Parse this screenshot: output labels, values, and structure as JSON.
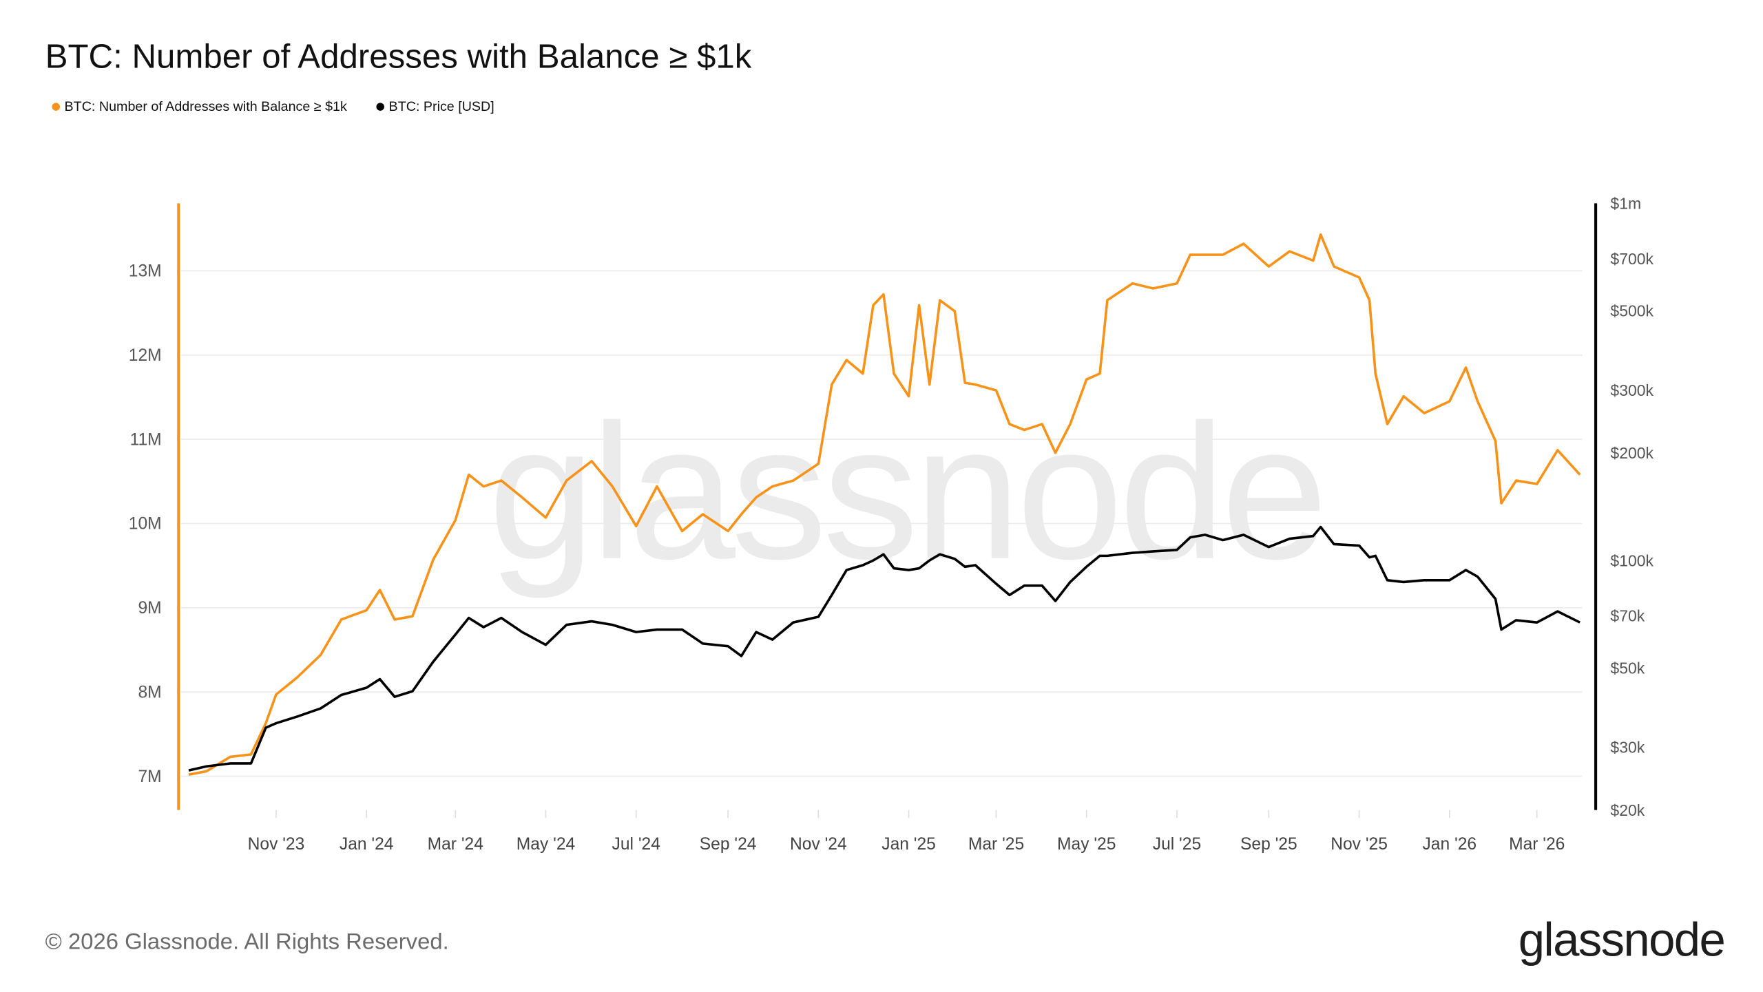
{
  "title": "BTC: Number of Addresses with Balance ≥ $1k",
  "footer": {
    "copyright": "© 2026 Glassnode. All Rights Reserved.",
    "logo": "glassnode",
    "watermark": "glassnode"
  },
  "colors": {
    "addresses": "#f7931a",
    "price": "#000000",
    "grid": "#ebebeb",
    "axis_text": "#555555"
  },
  "chart_data": {
    "type": "line",
    "title": "BTC: Number of Addresses with Balance ≥ $1k",
    "legend_position": "top-left",
    "grid": true,
    "x_ticks": [
      "Nov '23",
      "Jan '24",
      "Mar '24",
      "May '24",
      "Jul '24",
      "Sep '24",
      "Nov '24",
      "Jan '25",
      "Mar '25",
      "May '25",
      "Jul '25",
      "Sep '25",
      "Nov '25",
      "Jan '26",
      "Mar '26"
    ],
    "x_tick_dates": [
      "2023-11-01",
      "2024-01-01",
      "2024-03-01",
      "2024-05-01",
      "2024-07-01",
      "2024-09-01",
      "2024-11-01",
      "2025-01-01",
      "2025-03-01",
      "2025-05-01",
      "2025-07-01",
      "2025-09-01",
      "2025-11-01",
      "2026-01-01",
      "2026-03-01"
    ],
    "xlim": [
      "2023-09-03",
      "2026-03-30"
    ],
    "y_left": {
      "ticks": [
        "7M",
        "8M",
        "9M",
        "10M",
        "11M",
        "12M",
        "13M"
      ],
      "tick_values": [
        7,
        8,
        9,
        10,
        11,
        12,
        13
      ],
      "unit": "M",
      "ylim": [
        6.6,
        13.8
      ]
    },
    "y_right": {
      "scale": "log",
      "ticks": [
        "$20k",
        "$30k",
        "$50k",
        "$70k",
        "$100k",
        "$200k",
        "$300k",
        "$500k",
        "$700k",
        "$1m"
      ],
      "tick_values": [
        20000,
        30000,
        50000,
        70000,
        100000,
        200000,
        300000,
        500000,
        700000,
        1000000
      ],
      "ylim": [
        20000,
        1000000
      ]
    },
    "x": [
      "2023-09-03",
      "2023-09-15",
      "2023-10-01",
      "2023-10-15",
      "2023-10-25",
      "2023-11-01",
      "2023-11-15",
      "2023-12-01",
      "2023-12-15",
      "2024-01-01",
      "2024-01-10",
      "2024-01-20",
      "2024-02-01",
      "2024-02-15",
      "2024-03-01",
      "2024-03-10",
      "2024-03-20",
      "2024-04-01",
      "2024-04-15",
      "2024-05-01",
      "2024-05-15",
      "2024-06-01",
      "2024-06-15",
      "2024-07-01",
      "2024-07-15",
      "2024-08-01",
      "2024-08-15",
      "2024-09-01",
      "2024-09-10",
      "2024-09-20",
      "2024-10-01",
      "2024-10-15",
      "2024-11-01",
      "2024-11-10",
      "2024-11-20",
      "2024-12-01",
      "2024-12-08",
      "2024-12-15",
      "2024-12-22",
      "2025-01-01",
      "2025-01-08",
      "2025-01-15",
      "2025-01-22",
      "2025-02-01",
      "2025-02-08",
      "2025-02-15",
      "2025-03-01",
      "2025-03-10",
      "2025-03-20",
      "2025-04-01",
      "2025-04-10",
      "2025-04-20",
      "2025-05-01",
      "2025-05-10",
      "2025-05-15",
      "2025-06-01",
      "2025-06-15",
      "2025-07-01",
      "2025-07-10",
      "2025-07-20",
      "2025-08-01",
      "2025-08-15",
      "2025-09-01",
      "2025-09-15",
      "2025-10-01",
      "2025-10-06",
      "2025-10-15",
      "2025-11-01",
      "2025-11-08",
      "2025-11-12",
      "2025-11-20",
      "2025-12-01",
      "2025-12-15",
      "2026-01-01",
      "2026-01-12",
      "2026-01-20",
      "2026-02-01",
      "2026-02-05",
      "2026-02-15",
      "2026-03-01",
      "2026-03-15",
      "2026-03-30"
    ],
    "series": [
      {
        "name": "BTC: Number of Addresses with Balance ≥ $1k",
        "axis": "left",
        "unit": "M",
        "values": [
          7.02,
          7.06,
          7.23,
          7.26,
          7.63,
          7.97,
          8.17,
          8.44,
          8.86,
          8.97,
          9.21,
          8.86,
          8.9,
          9.57,
          10.04,
          10.58,
          10.44,
          10.51,
          10.31,
          10.07,
          10.51,
          10.74,
          10.44,
          9.97,
          10.44,
          9.91,
          10.11,
          9.91,
          10.11,
          10.31,
          10.44,
          10.51,
          10.71,
          11.65,
          11.94,
          11.78,
          12.59,
          12.72,
          11.78,
          11.51,
          12.59,
          11.65,
          12.65,
          12.52,
          11.67,
          11.65,
          11.58,
          11.18,
          11.11,
          11.18,
          10.84,
          11.18,
          11.71,
          11.78,
          12.65,
          12.85,
          12.79,
          12.85,
          13.19,
          13.19,
          13.19,
          13.32,
          13.05,
          13.23,
          13.12,
          13.43,
          13.05,
          12.92,
          12.65,
          11.78,
          11.18,
          11.51,
          11.31,
          11.45,
          11.85,
          11.45,
          10.98,
          10.24,
          10.51,
          10.47,
          10.87,
          10.58
        ]
      },
      {
        "name": "BTC: Price [USD]",
        "axis": "right",
        "unit": "USD",
        "values": [
          25800,
          26500,
          27000,
          27000,
          34000,
          35000,
          36500,
          38500,
          42000,
          44000,
          46500,
          41500,
          43000,
          52000,
          62000,
          69000,
          65000,
          69000,
          63000,
          58000,
          66000,
          67500,
          66000,
          63000,
          64000,
          64000,
          58500,
          57500,
          54000,
          63000,
          60000,
          67000,
          69500,
          80000,
          94000,
          97000,
          100000,
          104000,
          95000,
          94000,
          95000,
          100000,
          104000,
          101000,
          96000,
          97000,
          86000,
          80000,
          85000,
          85000,
          77000,
          87000,
          96000,
          103000,
          103000,
          105000,
          106000,
          107000,
          116000,
          118000,
          114000,
          118000,
          109000,
          115000,
          117000,
          124000,
          111000,
          110000,
          102000,
          103000,
          88000,
          87000,
          88000,
          88000,
          94000,
          90000,
          78000,
          64000,
          68000,
          67000,
          72000,
          67000
        ]
      }
    ]
  }
}
